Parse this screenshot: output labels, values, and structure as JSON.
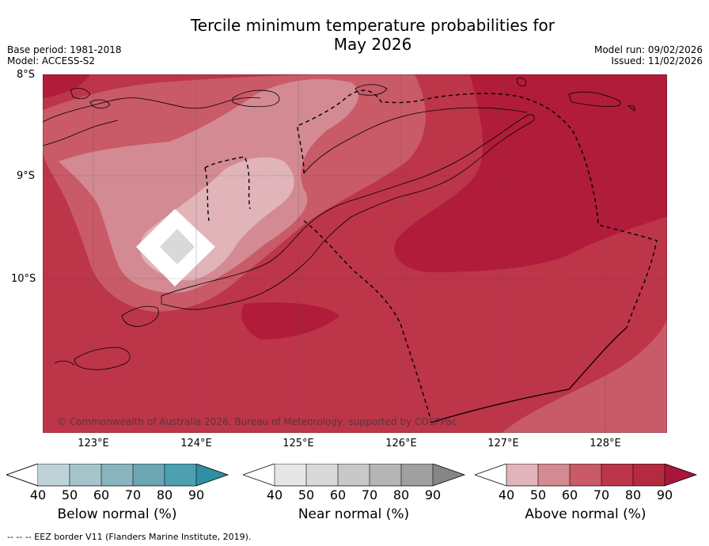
{
  "header": {
    "title_line1": "Tercile minimum temperature probabilities for",
    "title_line2": "May 2026",
    "base_period": "Base period: 1981-2018",
    "model": "Model: ACCESS-S2",
    "model_run": "Model run: 09/02/2026",
    "issued": "Issued: 11/02/2026"
  },
  "map": {
    "lat_labels": [
      "8°S",
      "9°S",
      "10°S"
    ],
    "lon_labels": [
      "123°E",
      "124°E",
      "125°E",
      "126°E",
      "127°E",
      "128°E"
    ],
    "copyright": "© Commonwealth of Australia 2026, Bureau of Meteorology, supported by COSPPac",
    "colors": {
      "above_90": "#b01c3a",
      "above_80": "#bd3549",
      "above_70": "#c95a67",
      "above_60": "#d38a92",
      "above_50": "#e0b4b9",
      "near_50": "#d9d9d9",
      "below_normal_white": "#ffffff",
      "land_border": "#000000"
    }
  },
  "colorbars": [
    {
      "name": "below-normal",
      "label": "Below normal (%)",
      "ticks": [
        "40",
        "50",
        "60",
        "70",
        "80",
        "90"
      ],
      "colors": [
        "#bdd3d9",
        "#a5c5cb",
        "#88b5bf",
        "#6aa6b3",
        "#4ca0b0",
        "#2e8fa4"
      ]
    },
    {
      "name": "near-normal",
      "label": "Near normal (%)",
      "ticks": [
        "40",
        "50",
        "60",
        "70",
        "80",
        "90"
      ],
      "colors": [
        "#e6e6e6",
        "#d9d9d9",
        "#c8c8c8",
        "#b5b5b5",
        "#a0a0a0",
        "#858585"
      ]
    },
    {
      "name": "above-normal",
      "label": "Above normal (%)",
      "ticks": [
        "40",
        "50",
        "60",
        "70",
        "80",
        "90"
      ],
      "colors": [
        "#e0b4b9",
        "#d38a92",
        "#c95a67",
        "#bd3549",
        "#b52a40",
        "#a8163a"
      ]
    }
  ],
  "footer": {
    "eez_legend": "--  --  -- EEZ border V11 (Flanders Marine Institute, 2019)."
  }
}
